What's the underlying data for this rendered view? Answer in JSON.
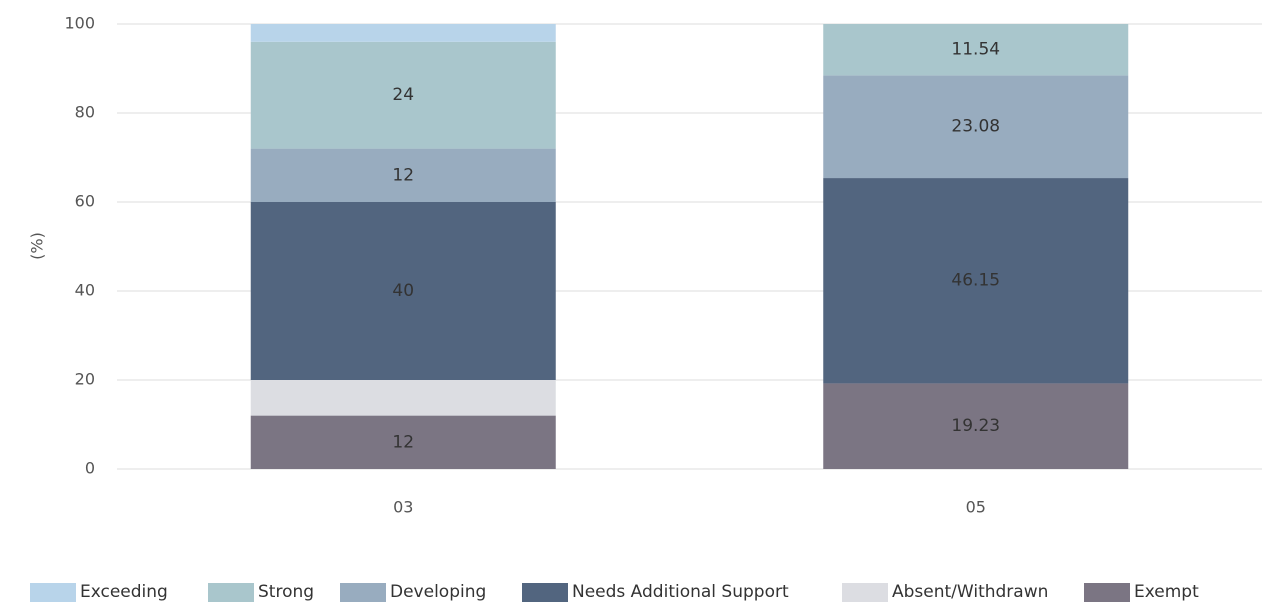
{
  "chart_data": {
    "type": "stacked_bar",
    "y_label": "(%)",
    "categories": [
      "03",
      "05"
    ],
    "series": [
      {
        "name": "Exempt",
        "color": "#7b7583",
        "values": [
          12,
          19.23
        ],
        "value_labels": [
          "12",
          "19.23"
        ]
      },
      {
        "name": "Absent/Withdrawn",
        "color": "#dcdde2",
        "values": [
          8,
          0
        ],
        "value_labels": [
          null,
          null
        ]
      },
      {
        "name": "Needs Additional Support",
        "color": "#52657f",
        "values": [
          40,
          46.15
        ],
        "value_labels": [
          "40",
          "46.15"
        ]
      },
      {
        "name": "Developing",
        "color": "#98acbf",
        "values": [
          12,
          23.08
        ],
        "value_labels": [
          "12",
          "23.08"
        ]
      },
      {
        "name": "Strong",
        "color": "#a9c6cc",
        "values": [
          24,
          11.54
        ],
        "value_labels": [
          "24",
          "11.54"
        ]
      },
      {
        "name": "Exceeding",
        "color": "#b8d4ea",
        "values": [
          4,
          0
        ],
        "value_labels": [
          null,
          null
        ]
      }
    ],
    "legend_order": [
      "Exceeding",
      "Strong",
      "Developing",
      "Needs Additional Support",
      "Absent/Withdrawn",
      "Exempt"
    ],
    "ylim": [
      0,
      100
    ],
    "yticks": [
      0,
      20,
      40,
      60,
      80,
      100
    ],
    "grid": true,
    "legend": "bottom"
  }
}
